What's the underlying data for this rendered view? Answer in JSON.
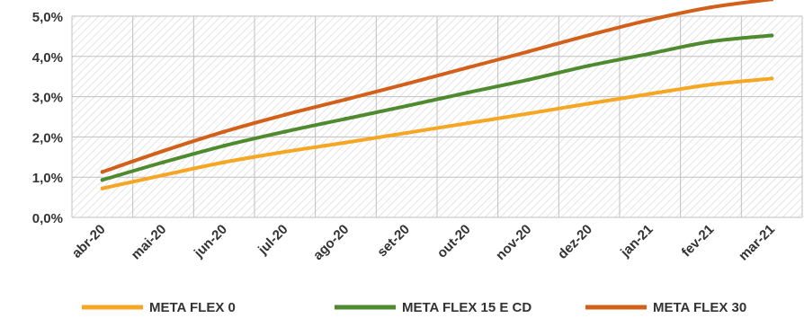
{
  "chart_data": {
    "type": "line",
    "categories": [
      "abr-20",
      "mai-20",
      "jun-20",
      "jul-20",
      "ago-20",
      "set-20",
      "out-20",
      "nov-20",
      "dez-20",
      "jan-21",
      "fev-21",
      "mar-21"
    ],
    "series": [
      {
        "name": "META FLEX 0",
        "color": "#F5A623",
        "values": [
          0.72,
          1.05,
          1.37,
          1.63,
          1.86,
          2.1,
          2.34,
          2.58,
          2.83,
          3.07,
          3.3,
          3.45
        ]
      },
      {
        "name": "META FLEX 15 E CD",
        "color": "#4E8A2E",
        "values": [
          0.93,
          1.37,
          1.78,
          2.13,
          2.45,
          2.77,
          3.1,
          3.42,
          3.77,
          4.07,
          4.37,
          4.52
        ]
      },
      {
        "name": "META FLEX 30",
        "color": "#D2601A",
        "values": [
          1.13,
          1.65,
          2.13,
          2.55,
          2.93,
          3.32,
          3.72,
          4.12,
          4.53,
          4.91,
          5.22,
          5.42
        ]
      }
    ],
    "y_ticks": [
      "0,0%",
      "1,0%",
      "2,0%",
      "3,0%",
      "4,0%",
      "5,0%"
    ],
    "ylim": [
      0,
      5
    ],
    "grid": true,
    "legend_position": "bottom",
    "title": "",
    "xlabel": "",
    "ylabel": ""
  }
}
